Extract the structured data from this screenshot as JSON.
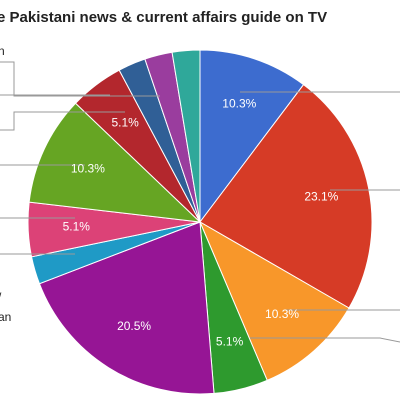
{
  "chart_data": {
    "type": "pie",
    "title": "e Pakistani news & current affairs guide on TV",
    "annotations": [
      "n",
      "/",
      "an"
    ],
    "values": [
      10.3,
      23.1,
      10.3,
      5.1,
      20.5,
      2.6,
      5.1,
      10.3,
      5.1,
      2.6,
      2.6,
      2.6
    ],
    "value_labels": [
      "10.3%",
      "23.1%",
      "10.3%",
      "5.1%",
      "20.5%",
      null,
      "5.1%",
      "10.3%",
      "5.1%",
      null,
      null,
      null
    ],
    "colors": [
      "#3d6ccf",
      "#d63b26",
      "#f8972a",
      "#2e9a2e",
      "#961595",
      "#1f9ac6",
      "#dc4277",
      "#66a523",
      "#b3272d",
      "#305f96",
      "#9a3d9e",
      "#2fa89a"
    ]
  }
}
